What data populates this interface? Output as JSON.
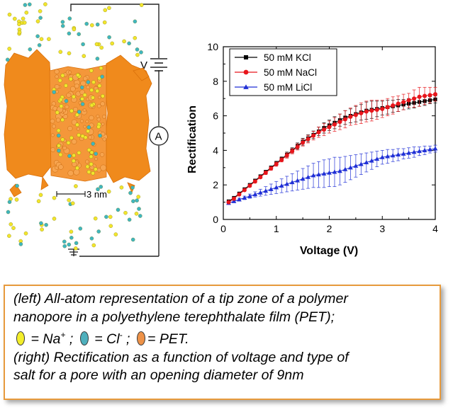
{
  "caption": {
    "line1": "(left) All-atom representation of a tip zone of a polymer",
    "line2": "nanopore in a polyethylene terephthalate film (PET);",
    "legend_na_text": " = Na",
    "legend_na_sup": "+",
    "legend_sep1": " ;",
    "legend_cl_text": " = Cl",
    "legend_cl_sup": "-",
    "legend_sep2": " ;",
    "legend_pet_text": "= PET.",
    "line4": "(right) Rectification as a function of voltage and type of",
    "line5": "salt for a pore with an opening diameter of 9nm",
    "colors": {
      "na": "#f3ee2a",
      "cl": "#4fb0bd",
      "pet": "#ee9248"
    }
  },
  "schematic": {
    "voltage_label": "V",
    "ammeter_label": "A",
    "scale_label": "3 nm",
    "colors": {
      "pet": "#f08a1c",
      "na": "#f2e52c",
      "cl": "#3fb6c0"
    }
  },
  "chart_data": {
    "type": "line",
    "title": "",
    "xlabel": "Voltage (V)",
    "ylabel": "Rectification",
    "xlim": [
      0,
      4
    ],
    "ylim": [
      0,
      10
    ],
    "xticks": [
      0,
      1,
      2,
      3,
      4
    ],
    "yticks": [
      0,
      2,
      4,
      6,
      8,
      10
    ],
    "legend_position": "top-left",
    "x": [
      0.1,
      0.2,
      0.3,
      0.4,
      0.5,
      0.6,
      0.7,
      0.8,
      0.9,
      1.0,
      1.1,
      1.2,
      1.3,
      1.4,
      1.5,
      1.6,
      1.7,
      1.8,
      1.9,
      2.0,
      2.1,
      2.2,
      2.3,
      2.4,
      2.5,
      2.6,
      2.7,
      2.8,
      2.9,
      3.0,
      3.1,
      3.2,
      3.3,
      3.4,
      3.5,
      3.6,
      3.7,
      3.8,
      3.9,
      4.0
    ],
    "series": [
      {
        "name": "50 mM KCl",
        "color": "#000000",
        "marker": "square",
        "values": [
          1.05,
          1.25,
          1.5,
          1.75,
          2.0,
          2.25,
          2.5,
          2.75,
          3.0,
          3.25,
          3.5,
          3.75,
          4.0,
          4.25,
          4.5,
          4.7,
          4.9,
          5.1,
          5.3,
          5.45,
          5.6,
          5.75,
          5.9,
          6.0,
          6.1,
          6.2,
          6.3,
          6.35,
          6.4,
          6.45,
          6.5,
          6.55,
          6.6,
          6.65,
          6.7,
          6.75,
          6.8,
          6.85,
          6.9,
          6.95
        ],
        "errors": [
          0.05,
          0.05,
          0.06,
          0.06,
          0.07,
          0.08,
          0.08,
          0.1,
          0.1,
          0.12,
          0.12,
          0.15,
          0.15,
          0.18,
          0.2,
          0.2,
          0.22,
          0.25,
          0.3,
          0.3,
          0.35,
          0.35,
          0.4,
          0.4,
          0.45,
          0.45,
          0.5,
          0.5,
          0.45,
          0.4,
          0.4,
          0.35,
          0.35,
          0.3,
          0.3,
          0.3,
          0.25,
          0.25,
          0.2,
          0.2
        ]
      },
      {
        "name": "50 mM NaCl",
        "color": "#e8151b",
        "marker": "circle",
        "values": [
          1.0,
          1.2,
          1.45,
          1.7,
          1.95,
          2.2,
          2.45,
          2.7,
          2.95,
          3.2,
          3.45,
          3.7,
          3.95,
          4.2,
          4.45,
          4.65,
          4.85,
          5.05,
          5.2,
          5.35,
          5.5,
          5.65,
          5.8,
          5.95,
          6.05,
          6.15,
          6.25,
          6.3,
          6.35,
          6.4,
          6.5,
          6.6,
          6.7,
          6.8,
          6.9,
          7.0,
          7.1,
          7.15,
          7.2,
          7.25
        ],
        "errors": [
          0.05,
          0.05,
          0.06,
          0.06,
          0.07,
          0.08,
          0.08,
          0.1,
          0.1,
          0.12,
          0.12,
          0.15,
          0.15,
          0.18,
          0.2,
          0.22,
          0.25,
          0.3,
          0.35,
          0.35,
          0.4,
          0.45,
          0.5,
          0.5,
          0.55,
          0.6,
          0.6,
          0.6,
          0.55,
          0.5,
          0.5,
          0.5,
          0.45,
          0.45,
          0.4,
          0.5,
          0.55,
          0.5,
          0.45,
          0.4
        ]
      },
      {
        "name": "50 mM LiCl",
        "color": "#1f2fd6",
        "marker": "triangle",
        "values": [
          0.95,
          1.05,
          1.15,
          1.25,
          1.35,
          1.45,
          1.55,
          1.65,
          1.75,
          1.85,
          1.95,
          2.05,
          2.15,
          2.25,
          2.35,
          2.45,
          2.55,
          2.6,
          2.65,
          2.7,
          2.75,
          2.8,
          2.9,
          3.0,
          3.1,
          3.2,
          3.3,
          3.4,
          3.5,
          3.6,
          3.65,
          3.7,
          3.75,
          3.8,
          3.85,
          3.9,
          3.95,
          4.0,
          4.05,
          4.1
        ],
        "errors": [
          0.05,
          0.05,
          0.08,
          0.1,
          0.12,
          0.15,
          0.2,
          0.25,
          0.3,
          0.35,
          0.4,
          0.45,
          0.5,
          0.55,
          0.6,
          0.65,
          0.7,
          0.75,
          0.8,
          0.8,
          0.85,
          0.8,
          0.75,
          0.7,
          0.65,
          0.6,
          0.55,
          0.5,
          0.45,
          0.4,
          0.4,
          0.35,
          0.35,
          0.3,
          0.3,
          0.3,
          0.25,
          0.25,
          0.2,
          0.2
        ]
      }
    ]
  }
}
